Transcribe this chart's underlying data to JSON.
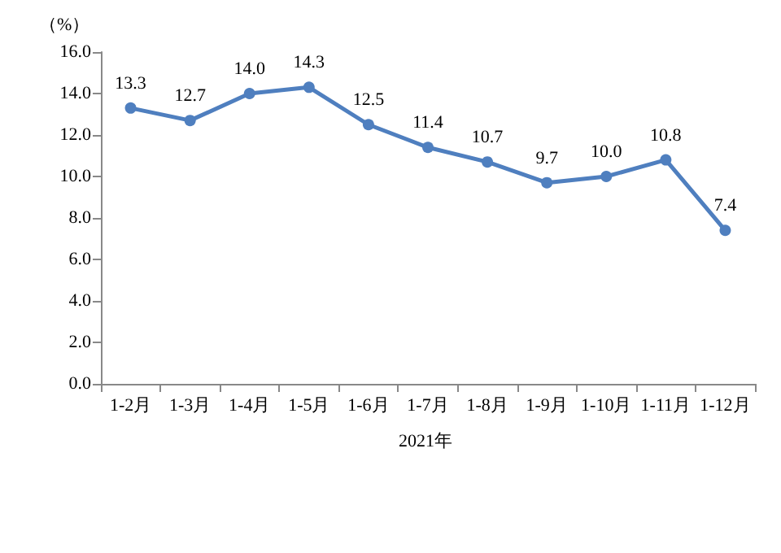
{
  "chart_data": {
    "type": "line",
    "ylabel": "（%）",
    "xlabel": "2021年",
    "categories": [
      "1-2月",
      "1-3月",
      "1-4月",
      "1-5月",
      "1-6月",
      "1-7月",
      "1-8月",
      "1-9月",
      "1-10月",
      "1-11月",
      "1-12月"
    ],
    "values": [
      13.3,
      12.7,
      14.0,
      14.3,
      12.5,
      11.4,
      10.7,
      9.7,
      10.0,
      10.8,
      7.4
    ],
    "value_labels": [
      "13.3",
      "12.7",
      "14.0",
      "14.3",
      "12.5",
      "11.4",
      "10.7",
      "9.7",
      "10.0",
      "10.8",
      "7.4"
    ],
    "color": "#4f7fbf",
    "marker": "circle",
    "line_style": "solid",
    "ylim": [
      0,
      16
    ],
    "yticks": [
      {
        "value": 0,
        "label": "0.0"
      },
      {
        "value": 2,
        "label": "2.0"
      },
      {
        "value": 4,
        "label": "4.0"
      },
      {
        "value": 6,
        "label": "6.0"
      },
      {
        "value": 8,
        "label": "8.0"
      },
      {
        "value": 10,
        "label": "10.0"
      },
      {
        "value": 12,
        "label": "12.0"
      },
      {
        "value": 14,
        "label": "14.0"
      },
      {
        "value": 16,
        "label": "16.0"
      }
    ]
  }
}
